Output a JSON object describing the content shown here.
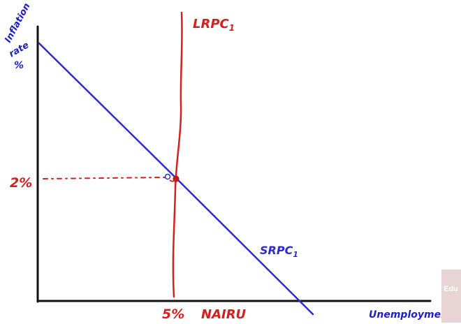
{
  "diagram": {
    "y_axis_label": [
      "Inflation",
      "rate",
      "%"
    ],
    "x_axis_label": "Unemployment %",
    "inflation_tick": "2%",
    "unemployment_tick": "5%",
    "nairu_label": "NAIRU",
    "lrpc_label": "LRPC",
    "lrpc_subscript": "1",
    "srpc_label": "SRPC",
    "srpc_subscript": "1"
  },
  "colors": {
    "axes": "#111111",
    "srpc": "#2c2cd0",
    "lrpc": "#d42020",
    "axis_labels": "#1e1ec8"
  },
  "watermark": "Edu"
}
